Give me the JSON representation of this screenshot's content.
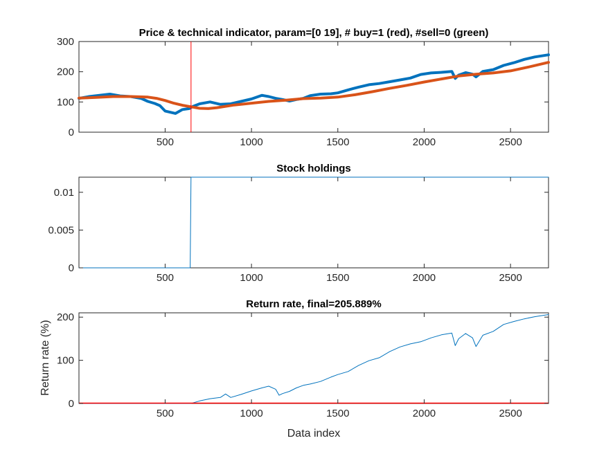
{
  "chart_data": [
    {
      "type": "line",
      "title": "Price & technical indicator, param=[0 19],  # buy=1 (red), #sell=0 (green)",
      "xlabel": "",
      "ylabel": "",
      "xlim": [
        1,
        2720
      ],
      "ylim": [
        0,
        300
      ],
      "xticks": [
        500,
        1000,
        1500,
        2000,
        2500
      ],
      "yticks": [
        0,
        100,
        200,
        300
      ],
      "series": [
        {
          "color": "#0072BD",
          "linewidth": 4,
          "x": [
            1,
            60,
            120,
            180,
            240,
            300,
            360,
            400,
            440,
            470,
            500,
            530,
            560,
            600,
            640,
            660,
            700,
            760,
            820,
            880,
            940,
            1000,
            1060,
            1100,
            1140,
            1180,
            1220,
            1260,
            1300,
            1340,
            1400,
            1460,
            1500,
            1560,
            1620,
            1680,
            1740,
            1800,
            1860,
            1920,
            1980,
            2040,
            2100,
            2160,
            2180,
            2200,
            2240,
            2280,
            2300,
            2340,
            2400,
            2460,
            2520,
            2580,
            2640,
            2720
          ],
          "y": [
            112,
            118,
            122,
            126,
            120,
            118,
            112,
            102,
            95,
            88,
            70,
            66,
            62,
            75,
            78,
            85,
            94,
            100,
            92,
            94,
            102,
            110,
            122,
            118,
            112,
            108,
            103,
            108,
            112,
            121,
            126,
            127,
            130,
            140,
            149,
            157,
            161,
            167,
            173,
            179,
            191,
            196,
            198,
            201,
            178,
            189,
            197,
            192,
            183,
            201,
            207,
            221,
            230,
            241,
            249,
            256
          ]
        },
        {
          "color": "#D95319",
          "linewidth": 4,
          "x": [
            1,
            100,
            200,
            300,
            400,
            450,
            500,
            550,
            600,
            650,
            700,
            750,
            800,
            900,
            1000,
            1100,
            1200,
            1300,
            1400,
            1500,
            1600,
            1700,
            1800,
            1900,
            2000,
            2100,
            2200,
            2300,
            2400,
            2500,
            2600,
            2720
          ],
          "y": [
            113,
            115,
            118,
            118,
            116,
            112,
            105,
            96,
            89,
            84,
            79,
            78,
            81,
            90,
            96,
            102,
            106,
            111,
            113,
            116,
            124,
            134,
            145,
            155,
            166,
            176,
            186,
            192,
            196,
            203,
            215,
            231
          ]
        }
      ],
      "vlines": [
        {
          "x": 650,
          "color": "#FF0000"
        }
      ]
    },
    {
      "type": "line",
      "title": "Stock holdings",
      "xlabel": "",
      "ylabel": "",
      "xlim": [
        1,
        2720
      ],
      "ylim": [
        0,
        0.012
      ],
      "xticks": [
        500,
        1000,
        1500,
        2000,
        2500
      ],
      "yticks": [
        0,
        0.005,
        0.01
      ],
      "ytick_labels": [
        "0",
        "0.005",
        "0.01"
      ],
      "series": [
        {
          "color": "#0072BD",
          "linewidth": 1,
          "x": [
            1,
            645,
            650,
            2720
          ],
          "y": [
            0,
            0,
            0.012,
            0.012
          ]
        }
      ]
    },
    {
      "type": "line",
      "title": "Return rate, final=205.889%",
      "xlabel": "Data index",
      "ylabel": "Return rate (%)",
      "xlim": [
        1,
        2720
      ],
      "ylim": [
        0,
        210
      ],
      "xticks": [
        500,
        1000,
        1500,
        2000,
        2500
      ],
      "yticks": [
        0,
        100,
        200
      ],
      "series": [
        {
          "color": "#0072BD",
          "linewidth": 1,
          "x": [
            1,
            650,
            700,
            760,
            820,
            850,
            880,
            940,
            1000,
            1060,
            1100,
            1140,
            1160,
            1180,
            1220,
            1260,
            1300,
            1340,
            1400,
            1460,
            1500,
            1560,
            1620,
            1680,
            1740,
            1800,
            1860,
            1920,
            1980,
            2040,
            2100,
            2160,
            2180,
            2200,
            2240,
            2280,
            2300,
            2340,
            2400,
            2460,
            2520,
            2580,
            2640,
            2720
          ],
          "y": [
            0,
            0,
            6,
            11,
            14,
            22,
            14,
            21,
            29,
            36,
            40,
            33,
            19,
            23,
            28,
            36,
            42,
            45,
            51,
            61,
            67,
            74,
            88,
            99,
            106,
            120,
            131,
            138,
            143,
            152,
            159,
            163,
            134,
            150,
            162,
            152,
            132,
            158,
            167,
            183,
            190,
            196,
            201,
            206
          ]
        }
      ],
      "hlines": [
        {
          "y": 0,
          "color": "#FF0000"
        }
      ]
    }
  ]
}
